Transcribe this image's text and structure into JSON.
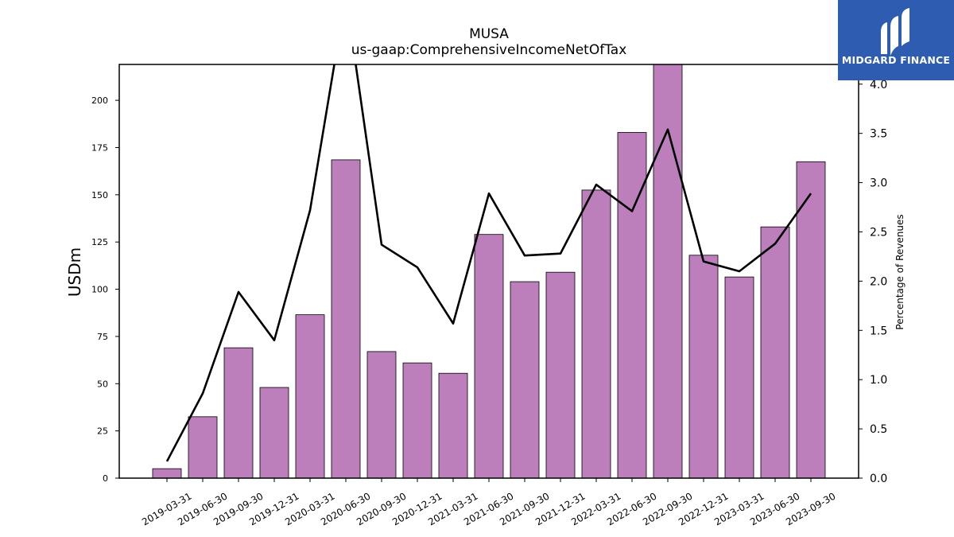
{
  "chart_data": {
    "type": "bar+line",
    "title": "MUSA",
    "subtitle": "us-gaap:ComprehensiveIncomeNetOfTax",
    "ylabel": "USDm",
    "y2label": "Percentage of Revenues",
    "ylim": [
      0,
      219
    ],
    "y2lim": [
      0,
      4.2
    ],
    "yticks": [
      0,
      25,
      50,
      75,
      100,
      125,
      150,
      175,
      200
    ],
    "y2ticks": [
      "0.0",
      "0.5",
      "1.0",
      "1.5",
      "2.0",
      "2.5",
      "3.0",
      "3.5",
      "4.0"
    ],
    "categories": [
      "2019-03-31",
      "2019-06-30",
      "2019-09-30",
      "2019-12-31",
      "2020-03-31",
      "2020-06-30",
      "2020-09-30",
      "2020-12-31",
      "2021-03-31",
      "2021-06-30",
      "2021-09-30",
      "2021-12-31",
      "2022-03-31",
      "2022-06-30",
      "2022-09-30",
      "2022-12-31",
      "2023-03-31",
      "2023-06-30",
      "2023-09-30"
    ],
    "series": [
      {
        "type": "bar",
        "axis": "left",
        "color": "#bc7fbc",
        "values": [
          5,
          32.5,
          69,
          48,
          86.5,
          168.5,
          67,
          61,
          55.5,
          129,
          104,
          109,
          152.5,
          183,
          219,
          118,
          106.5,
          133,
          167.5
        ]
      },
      {
        "type": "line",
        "axis": "right",
        "color": "#000000",
        "values": [
          0.17,
          0.86,
          1.89,
          1.4,
          2.72,
          4.9,
          2.37,
          2.14,
          1.57,
          2.89,
          2.26,
          2.28,
          2.98,
          2.71,
          3.54,
          2.2,
          2.1,
          2.38,
          2.89
        ]
      }
    ],
    "grid": false,
    "legend": "none"
  },
  "logo": {
    "text": "MIDGARD FINANCE",
    "icon": "midgard-logo-icon",
    "background": "#2d5cb0"
  }
}
